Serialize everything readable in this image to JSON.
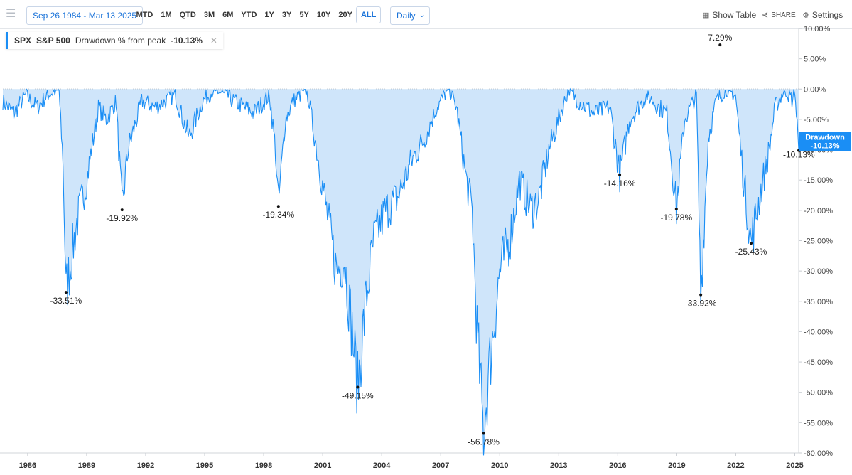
{
  "toolbar": {
    "date_range": "Sep 26 1984 - Mar 13 2025",
    "periods": [
      "MTD",
      "1M",
      "QTD",
      "3M",
      "6M",
      "YTD",
      "1Y",
      "3Y",
      "5Y",
      "10Y",
      "20Y",
      "ALL"
    ],
    "active_period": "ALL",
    "frequency": "Daily",
    "show_table": "Show Table",
    "share": "SHARE",
    "settings": "Settings"
  },
  "legend": {
    "ticker": "SPX",
    "name": "S&P 500",
    "metric": "Drawdown % from peak",
    "value": "-10.13%"
  },
  "last_value_tag": {
    "label": "Drawdown",
    "value": "-10.13%"
  },
  "colors": {
    "line": "#1a8ef5",
    "fill": "#cfe5fa",
    "accent": "#1a73d9"
  },
  "chart_data": {
    "type": "area",
    "title": "",
    "xlabel": "",
    "ylabel": "",
    "ylim": [
      -60,
      10
    ],
    "xlim": [
      1984.74,
      2025.2
    ],
    "y_ticks": [
      "10.00%",
      "5.00%",
      "0.00%",
      "-5.00%",
      "-10.00%",
      "-15.00%",
      "-20.00%",
      "-25.00%",
      "-30.00%",
      "-35.00%",
      "-40.00%",
      "-45.00%",
      "-50.00%",
      "-55.00%",
      "-60.00%"
    ],
    "x_ticks": [
      "1986",
      "1989",
      "1992",
      "1995",
      "1998",
      "2001",
      "2004",
      "2007",
      "2010",
      "2013",
      "2016",
      "2019",
      "2022",
      "2025"
    ],
    "series": [
      {
        "x": [
          1984.74,
          1985.3,
          1985.9,
          1986.5,
          1987.0,
          1987.6,
          1987.8,
          1987.95,
          1988.5,
          1989.0,
          1989.6,
          1990.0,
          1990.5,
          1990.8,
          1991.1,
          1991.8,
          1992.5,
          1993.5,
          1994.2,
          1994.9,
          1995.5,
          1996.5,
          1997.5,
          1998.3,
          1998.6,
          1998.75,
          1999.1,
          1999.5,
          2000.2,
          2000.7,
          2001.2,
          2001.7,
          2002.1,
          2002.5,
          2002.78,
          2003.2,
          2003.6,
          2004.2,
          2004.8,
          2005.5,
          2006.2,
          2006.8,
          2007.4,
          2007.8,
          2008.3,
          2008.6,
          2008.85,
          2009.18,
          2009.5,
          2010.0,
          2010.5,
          2011.0,
          2011.6,
          2012.0,
          2012.5,
          2013.0,
          2013.5,
          2014.0,
          2014.8,
          2015.6,
          2016.1,
          2016.6,
          2017.5,
          2018.1,
          2018.5,
          2018.98,
          2019.4,
          2020.0,
          2020.22,
          2020.6,
          2021.0,
          2021.5,
          2021.99,
          2022.4,
          2022.78,
          2023.2,
          2023.7,
          2024.0,
          2024.5,
          2024.9,
          2025.0,
          2025.2
        ],
        "y": [
          -2,
          -4,
          -1,
          -3,
          -1,
          0,
          -12,
          -33.51,
          -22,
          -15,
          -3,
          -5,
          -2,
          -19.92,
          -10,
          -2,
          -3,
          -1,
          -8,
          -2,
          0,
          -2,
          -4,
          -1,
          -10,
          -19.34,
          -5,
          -2,
          0,
          -10,
          -20,
          -30,
          -28,
          -40,
          -49.15,
          -35,
          -25,
          -20,
          -18,
          -12,
          -8,
          -3,
          0,
          -3,
          -15,
          -20,
          -40,
          -56.78,
          -45,
          -30,
          -25,
          -15,
          -20,
          -18,
          -10,
          -5,
          0,
          -2,
          -4,
          -3,
          -14.16,
          -5,
          -1,
          -3,
          -4,
          -19.78,
          -5,
          -1,
          -33.92,
          -8,
          -2,
          0,
          -1,
          -15,
          -25.43,
          -18,
          -10,
          -3,
          0,
          -2,
          0,
          -10.13
        ]
      }
    ],
    "annotations": [
      {
        "x": 1987.95,
        "y": -33.51,
        "label": "-33.51%"
      },
      {
        "x": 1990.8,
        "y": -19.92,
        "label": "-19.92%"
      },
      {
        "x": 1998.75,
        "y": -19.34,
        "label": "-19.34%"
      },
      {
        "x": 2002.78,
        "y": -49.15,
        "label": "-49.15%"
      },
      {
        "x": 2009.18,
        "y": -56.78,
        "label": "-56.78%"
      },
      {
        "x": 2016.1,
        "y": -14.16,
        "label": "-14.16%"
      },
      {
        "x": 2018.98,
        "y": -19.78,
        "label": "-19.78%"
      },
      {
        "x": 2020.22,
        "y": -33.92,
        "label": "-33.92%"
      },
      {
        "x": 2022.78,
        "y": -25.43,
        "label": "-25.43%"
      },
      {
        "x": 2025.2,
        "y": -10.13,
        "label": "-10.13%"
      },
      {
        "x": 2021.2,
        "y": 7.29,
        "label": "7.29%"
      }
    ]
  }
}
